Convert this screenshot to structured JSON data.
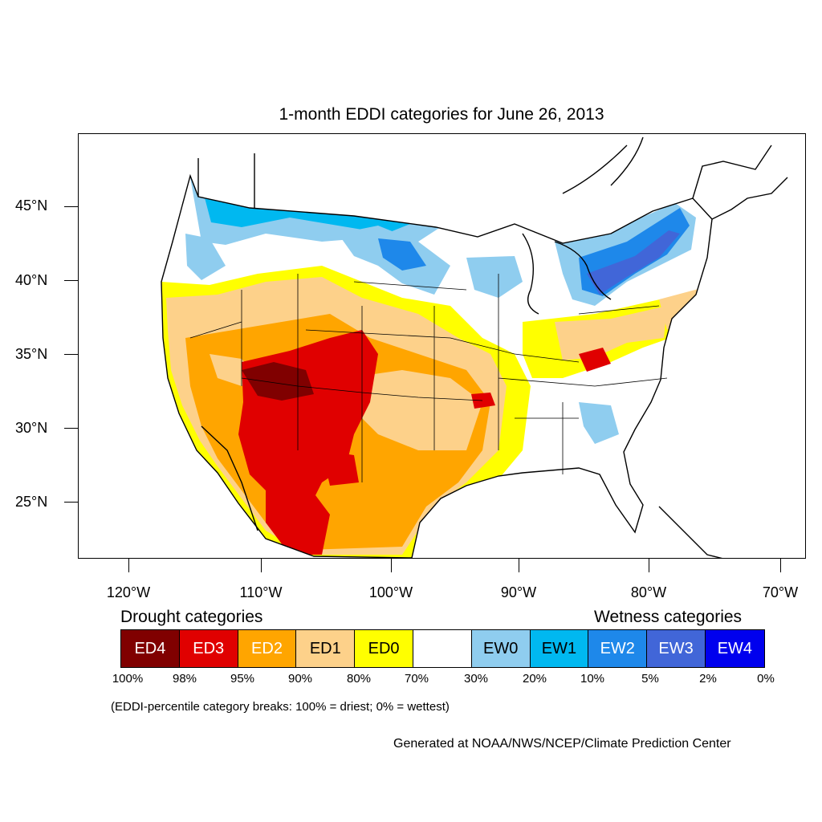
{
  "title": "1-month EDDI categories for June 26, 2013",
  "map": {
    "type": "choropleth",
    "region": "Contiguous United States",
    "coastline_color": "#000000",
    "lat_labels": [
      "45°N",
      "40°N",
      "35°N",
      "30°N",
      "25°N"
    ],
    "lon_labels": [
      "120°W",
      "110°W",
      "100°W",
      "90°W",
      "80°W",
      "70°W"
    ]
  },
  "legend": {
    "drought_heading": "Drought categories",
    "wetness_heading": "Wetness categories",
    "categories": [
      {
        "label": "ED4",
        "color": "#800000",
        "text_color": "#ffffff"
      },
      {
        "label": "ED3",
        "color": "#e00000",
        "text_color": "#ffffff"
      },
      {
        "label": "ED2",
        "color": "#ffa500",
        "text_color": "#ffffff"
      },
      {
        "label": "ED1",
        "color": "#fdd18a",
        "text_color": "#000000"
      },
      {
        "label": "ED0",
        "color": "#ffff00",
        "text_color": "#000000"
      },
      {
        "label": "",
        "color": "#ffffff",
        "text_color": "#000000"
      },
      {
        "label": "EW0",
        "color": "#8fcdef",
        "text_color": "#000000"
      },
      {
        "label": "EW1",
        "color": "#00b8f0",
        "text_color": "#000000"
      },
      {
        "label": "EW2",
        "color": "#1e88ea",
        "text_color": "#ffffff"
      },
      {
        "label": "EW3",
        "color": "#4166d8",
        "text_color": "#ffffff"
      },
      {
        "label": "EW4",
        "color": "#0000ee",
        "text_color": "#ffffff"
      }
    ],
    "breaks": [
      "100%",
      "98%",
      "95%",
      "90%",
      "80%",
      "70%",
      "30%",
      "20%",
      "10%",
      "5%",
      "2%",
      "0%"
    ],
    "note": "(EDDI-percentile category breaks: 100% = driest; 0% = wettest)"
  },
  "credit": "Generated at NOAA/NWS/NCEP/Climate Prediction Center"
}
